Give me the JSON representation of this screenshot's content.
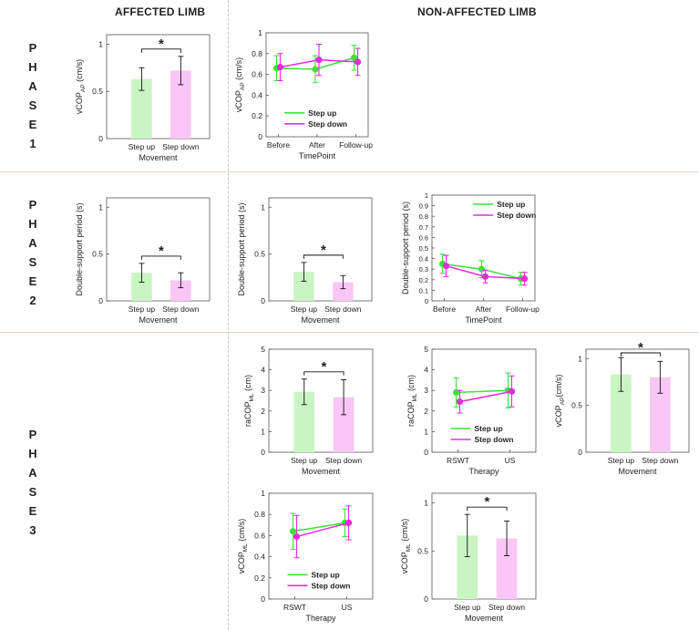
{
  "header": {
    "affected": "AFFECTED LIMB",
    "non_affected": "NON-AFFECTED LIMB"
  },
  "phases": [
    {
      "letters": [
        "P",
        "H",
        "A",
        "S",
        "E"
      ],
      "number": "1"
    },
    {
      "letters": [
        "P",
        "H",
        "A",
        "S",
        "E"
      ],
      "number": "2"
    },
    {
      "letters": [
        "P",
        "H",
        "A",
        "S",
        "E"
      ],
      "number": "3"
    }
  ],
  "colors": {
    "step_up_bar": "#c9f5c3",
    "step_down_bar": "#f9c6f5",
    "step_up_line": "#3be23b",
    "step_down_line": "#e829e2",
    "axis": "#555555",
    "divider": "#cfc7bd"
  },
  "chart_data": [
    {
      "id": "p1_affected_movement",
      "type": "bar",
      "ylabel_main": "vCOP",
      "ylabel_sub": "AP",
      "ylabel_unit": " (cm/s)",
      "xlabel": "Movement",
      "categories": [
        "Step up",
        "Step down"
      ],
      "values": [
        0.63,
        0.72
      ],
      "errors": [
        0.12,
        0.15
      ],
      "ylim": [
        0,
        1.1
      ],
      "yticks": [
        0,
        0.5,
        1
      ],
      "ytick_labels": [
        "0",
        "0.5",
        "1"
      ],
      "significance": "*"
    },
    {
      "id": "p1_nonaffected_timepoint",
      "type": "line",
      "ylabel_main": "vCOP",
      "ylabel_sub": "AP",
      "ylabel_unit": " (cm/s)",
      "xlabel": "TimePoint",
      "categories": [
        "Before",
        "After",
        "Follow-up"
      ],
      "series": [
        {
          "name": "Step up",
          "values": [
            0.66,
            0.65,
            0.76
          ],
          "errors": [
            0.12,
            0.13,
            0.12
          ]
        },
        {
          "name": "Step down",
          "values": [
            0.67,
            0.74,
            0.72
          ],
          "errors": [
            0.13,
            0.15,
            0.13
          ]
        }
      ],
      "ylim": [
        0,
        1
      ],
      "yticks": [
        0,
        0.2,
        0.4,
        0.6,
        0.8,
        1
      ],
      "ytick_labels": [
        "0",
        "0.2",
        "0.4",
        "0.6",
        "0.8",
        "1"
      ],
      "legend": "bottom-center"
    },
    {
      "id": "p2_affected_movement",
      "type": "bar",
      "ylabel": "Double-support period (s)",
      "xlabel": "Movement",
      "categories": [
        "Step up",
        "Step down"
      ],
      "values": [
        0.3,
        0.22
      ],
      "errors": [
        0.1,
        0.08
      ],
      "ylim": [
        0,
        1.1
      ],
      "yticks": [
        0,
        0.5,
        1
      ],
      "ytick_labels": [
        "0",
        "0.5",
        "1"
      ],
      "significance": "*"
    },
    {
      "id": "p2_nonaffected_movement",
      "type": "bar",
      "ylabel": "Double-support period (s)",
      "xlabel": "Movement",
      "categories": [
        "Step up",
        "Step down"
      ],
      "values": [
        0.31,
        0.2
      ],
      "errors": [
        0.1,
        0.07
      ],
      "ylim": [
        0,
        1.1
      ],
      "yticks": [
        0,
        0.5,
        1
      ],
      "ytick_labels": [
        "0",
        "0.5",
        "1"
      ],
      "significance": "*"
    },
    {
      "id": "p2_nonaffected_timepoint",
      "type": "line",
      "ylabel": "Double-support period (s)",
      "xlabel": "TimePoint",
      "categories": [
        "Before",
        "After",
        "Follow-up"
      ],
      "series": [
        {
          "name": "Step up",
          "values": [
            0.35,
            0.3,
            0.21
          ],
          "errors": [
            0.09,
            0.08,
            0.06
          ]
        },
        {
          "name": "Step down",
          "values": [
            0.33,
            0.23,
            0.21
          ],
          "errors": [
            0.1,
            0.06,
            0.06
          ]
        }
      ],
      "ylim": [
        0,
        1
      ],
      "yticks": [
        0,
        0.1,
        0.2,
        0.3,
        0.4,
        0.5,
        0.6,
        0.7,
        0.8,
        0.9,
        1
      ],
      "ytick_labels": [
        "0",
        "0.1",
        "0.2",
        "0.3",
        "0.4",
        "0.5",
        "0.6",
        "0.7",
        "0.8",
        "0.9",
        "1"
      ],
      "legend": "top-right"
    },
    {
      "id": "p3_nonaffected_raml_movement",
      "type": "bar",
      "ylabel_main": "raCOP",
      "ylabel_sub": "ML",
      "ylabel_unit": " (cm)",
      "xlabel": "Movement",
      "categories": [
        "Step up",
        "Step down"
      ],
      "values": [
        2.93,
        2.67
      ],
      "errors": [
        0.62,
        0.85
      ],
      "ylim": [
        0,
        5
      ],
      "yticks": [
        0,
        1,
        2,
        3,
        4,
        5
      ],
      "ytick_labels": [
        "0",
        "1",
        "2",
        "3",
        "4",
        "5"
      ],
      "significance": "*"
    },
    {
      "id": "p3_nonaffected_raml_therapy",
      "type": "line",
      "ylabel_main": "raCOP",
      "ylabel_sub": "ML",
      "ylabel_unit": " (cm)",
      "xlabel": "Therapy",
      "categories": [
        "RSWT",
        "US"
      ],
      "series": [
        {
          "name": "Step up",
          "values": [
            2.9,
            3.0
          ],
          "errors": [
            0.7,
            0.85
          ]
        },
        {
          "name": "Step down",
          "values": [
            2.45,
            2.95
          ],
          "errors": [
            0.55,
            0.75
          ]
        }
      ],
      "ylim": [
        0,
        5
      ],
      "yticks": [
        0,
        1,
        2,
        3,
        4,
        5
      ],
      "ytick_labels": [
        "0",
        "1",
        "2",
        "3",
        "4",
        "5"
      ],
      "legend": "bottom-center"
    },
    {
      "id": "p3_nonaffected_vap_movement",
      "type": "bar",
      "ylabel_main": "vCOP",
      "ylabel_sub": "AP",
      "ylabel_unit": "(cm/s)",
      "xlabel": "Movement",
      "categories": [
        "Step up",
        "Step down"
      ],
      "values": [
        0.83,
        0.8
      ],
      "errors": [
        0.18,
        0.17
      ],
      "ylim": [
        0,
        1.1
      ],
      "yticks": [
        0,
        0.5,
        1
      ],
      "ytick_labels": [
        "0",
        "0.5",
        "1"
      ],
      "significance": "*"
    },
    {
      "id": "p3_nonaffected_vml_therapy",
      "type": "line",
      "ylabel_main": "vCOP",
      "ylabel_sub": "ML",
      "ylabel_unit": " (cm/s)",
      "xlabel": "Therapy",
      "categories": [
        "RSWT",
        "US"
      ],
      "series": [
        {
          "name": "Step up",
          "values": [
            0.64,
            0.72
          ],
          "errors": [
            0.17,
            0.13
          ]
        },
        {
          "name": "Step down",
          "values": [
            0.59,
            0.72
          ],
          "errors": [
            0.2,
            0.16
          ]
        }
      ],
      "ylim": [
        0,
        1
      ],
      "yticks": [
        0,
        0.2,
        0.4,
        0.6,
        0.8,
        1
      ],
      "ytick_labels": [
        "0",
        "0.2",
        "0.4",
        "0.6",
        "0.8",
        "1"
      ],
      "legend": "bottom-center"
    },
    {
      "id": "p3_nonaffected_vml_movement",
      "type": "bar",
      "ylabel_main": "vCOP",
      "ylabel_sub": "ML",
      "ylabel_unit": " (cm/s)",
      "xlabel": "Movement",
      "categories": [
        "Step up",
        "Step down"
      ],
      "values": [
        0.66,
        0.63
      ],
      "errors": [
        0.22,
        0.18
      ],
      "ylim": [
        0,
        1.1
      ],
      "yticks": [
        0,
        0.5,
        1
      ],
      "ytick_labels": [
        "0",
        "0.5",
        "1"
      ],
      "significance": "*"
    }
  ]
}
